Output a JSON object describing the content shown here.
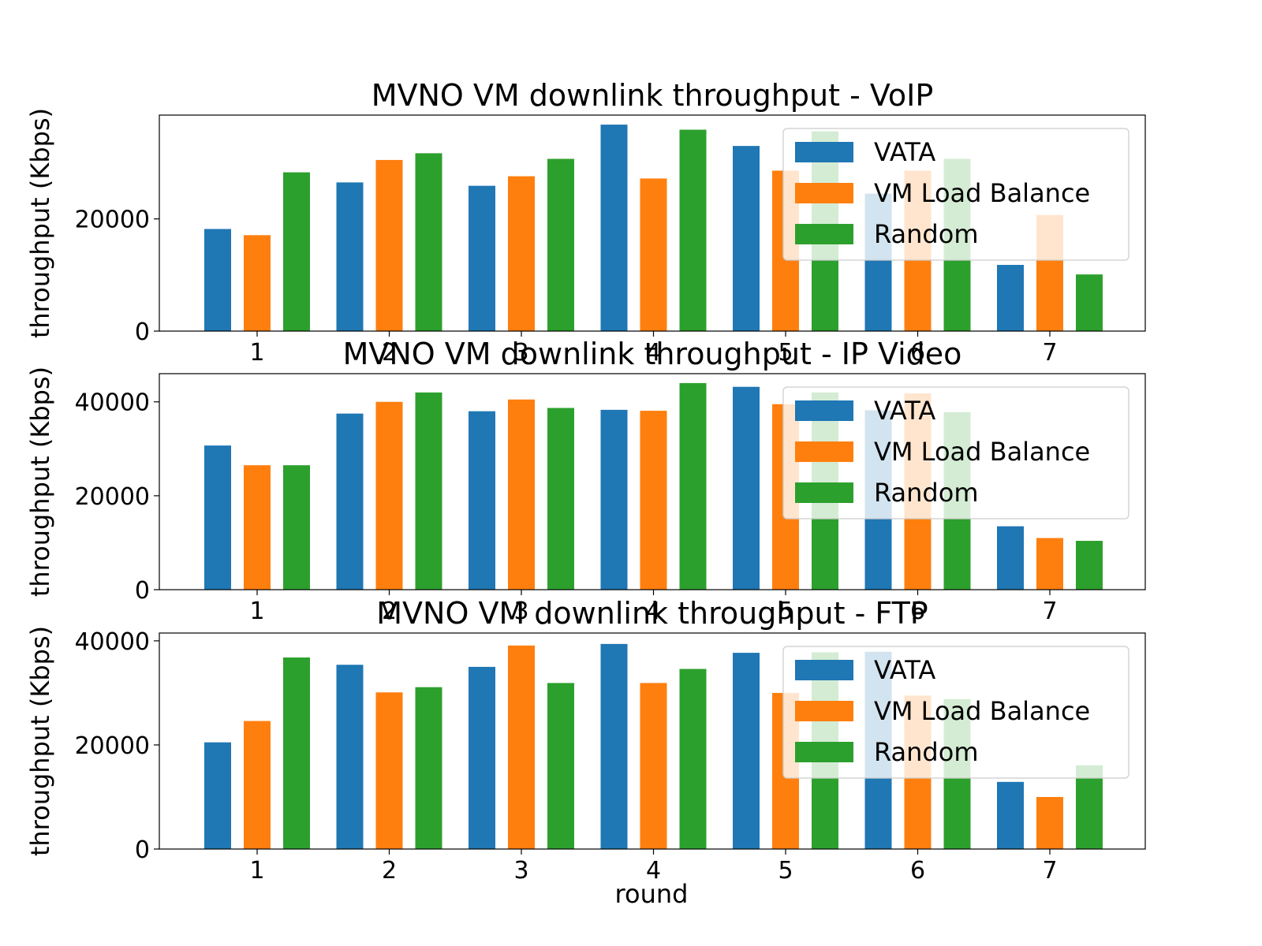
{
  "colors": {
    "VATA": "#1f77b4",
    "VM Load Balance": "#ff7f0e",
    "Random": "#2ca02c"
  },
  "xlabel": "round",
  "chart_data": [
    {
      "type": "bar",
      "title": "MVNO VM downlink throughput - VoIP",
      "ylabel": "throughput (Kbps)",
      "categories": [
        "1",
        "2",
        "3",
        "4",
        "5",
        "6",
        "7"
      ],
      "ylim": [
        0,
        38500
      ],
      "yticks": [
        "0",
        "20000"
      ],
      "ytick_values": [
        0,
        20000
      ],
      "series": [
        {
          "name": "VATA",
          "values": [
            18200,
            26500,
            25900,
            36800,
            33000,
            24500,
            11800
          ]
        },
        {
          "name": "VM Load Balance",
          "values": [
            17100,
            30500,
            27600,
            27200,
            28600,
            28600,
            20700
          ]
        },
        {
          "name": "Random",
          "values": [
            28300,
            31700,
            30700,
            35900,
            35600,
            30700,
            10100
          ]
        }
      ],
      "legend": [
        "VATA",
        "VM Load Balance",
        "Random"
      ],
      "legend_loc": "upper-right"
    },
    {
      "type": "bar",
      "title": "MVNO VM downlink throughput - IP Video",
      "ylabel": "throughput (Kbps)",
      "categories": [
        "1",
        "2",
        "3",
        "4",
        "5",
        "6",
        "7"
      ],
      "ylim": [
        0,
        46000
      ],
      "yticks": [
        "0",
        "20000",
        "40000"
      ],
      "ytick_values": [
        0,
        20000,
        40000
      ],
      "series": [
        {
          "name": "VATA",
          "values": [
            30700,
            37500,
            38000,
            38300,
            43200,
            38200,
            13500
          ]
        },
        {
          "name": "VM Load Balance",
          "values": [
            26500,
            40000,
            40500,
            38100,
            39500,
            41800,
            11000
          ]
        },
        {
          "name": "Random",
          "values": [
            26500,
            42000,
            38700,
            44000,
            42000,
            37800,
            10400
          ]
        }
      ],
      "legend": [
        "VATA",
        "VM Load Balance",
        "Random"
      ],
      "legend_loc": "upper-right"
    },
    {
      "type": "bar",
      "title": "MVNO VM downlink throughput - FTP",
      "ylabel": "throughput (Kbps)",
      "xlabel": "round",
      "categories": [
        "1",
        "2",
        "3",
        "4",
        "5",
        "6",
        "7"
      ],
      "ylim": [
        0,
        41500
      ],
      "yticks": [
        "0",
        "20000",
        "40000"
      ],
      "ytick_values": [
        0,
        20000,
        40000
      ],
      "series": [
        {
          "name": "VATA",
          "values": [
            20500,
            35400,
            35000,
            39400,
            37700,
            37900,
            12900
          ]
        },
        {
          "name": "VM Load Balance",
          "values": [
            24600,
            30100,
            39100,
            31900,
            30000,
            29500,
            10000
          ]
        },
        {
          "name": "Random",
          "values": [
            36800,
            31100,
            31900,
            34600,
            37800,
            28800,
            16100
          ]
        }
      ],
      "legend": [
        "VATA",
        "VM Load Balance",
        "Random"
      ],
      "legend_loc": "upper-right"
    }
  ]
}
